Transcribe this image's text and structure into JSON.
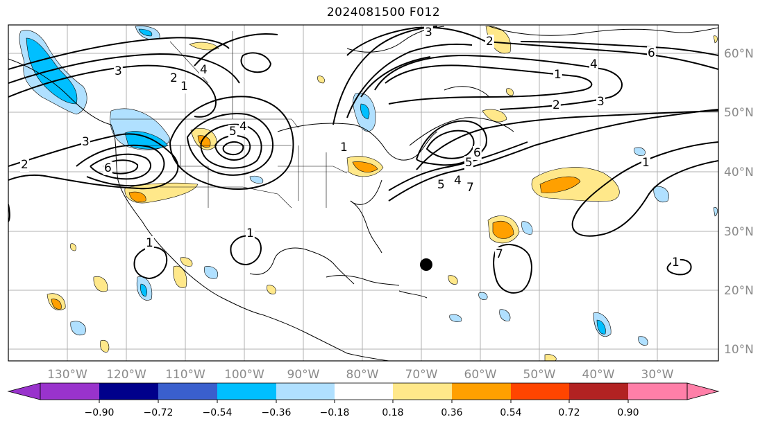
{
  "title": "2024081500 F012",
  "map": {
    "projection": "mercator",
    "lon_labels": [
      "130°W",
      "120°W",
      "110°W",
      "100°W",
      "90°W",
      "80°W",
      "70°W",
      "60°W",
      "50°W",
      "40°W",
      "30°W"
    ],
    "lat_labels": [
      "60°N",
      "50°N",
      "40°N",
      "30°N",
      "20°N",
      "10°N"
    ],
    "contour_labels": [
      "1",
      "2",
      "3",
      "4",
      "5",
      "6",
      "7"
    ],
    "storm_marker": {
      "label": "storm-center",
      "lon": -69.5,
      "lat": 24.5
    },
    "contour_color": "#000000",
    "coastline_color": "#000000",
    "grid_color": "#b0b0b0"
  },
  "colorbar": {
    "ticks": [
      "−0.90",
      "−0.72",
      "−0.54",
      "−0.36",
      "−0.18",
      "0.18",
      "0.36",
      "0.54",
      "0.72",
      "0.90"
    ],
    "colors": [
      "#9933cc",
      "#00008b",
      "#3a5fcd",
      "#00bfff",
      "#b0e0ff",
      "#ffffff",
      "#ffe88a",
      "#ffa000",
      "#ff4500",
      "#b22222",
      "#ff7fa8"
    ]
  }
}
